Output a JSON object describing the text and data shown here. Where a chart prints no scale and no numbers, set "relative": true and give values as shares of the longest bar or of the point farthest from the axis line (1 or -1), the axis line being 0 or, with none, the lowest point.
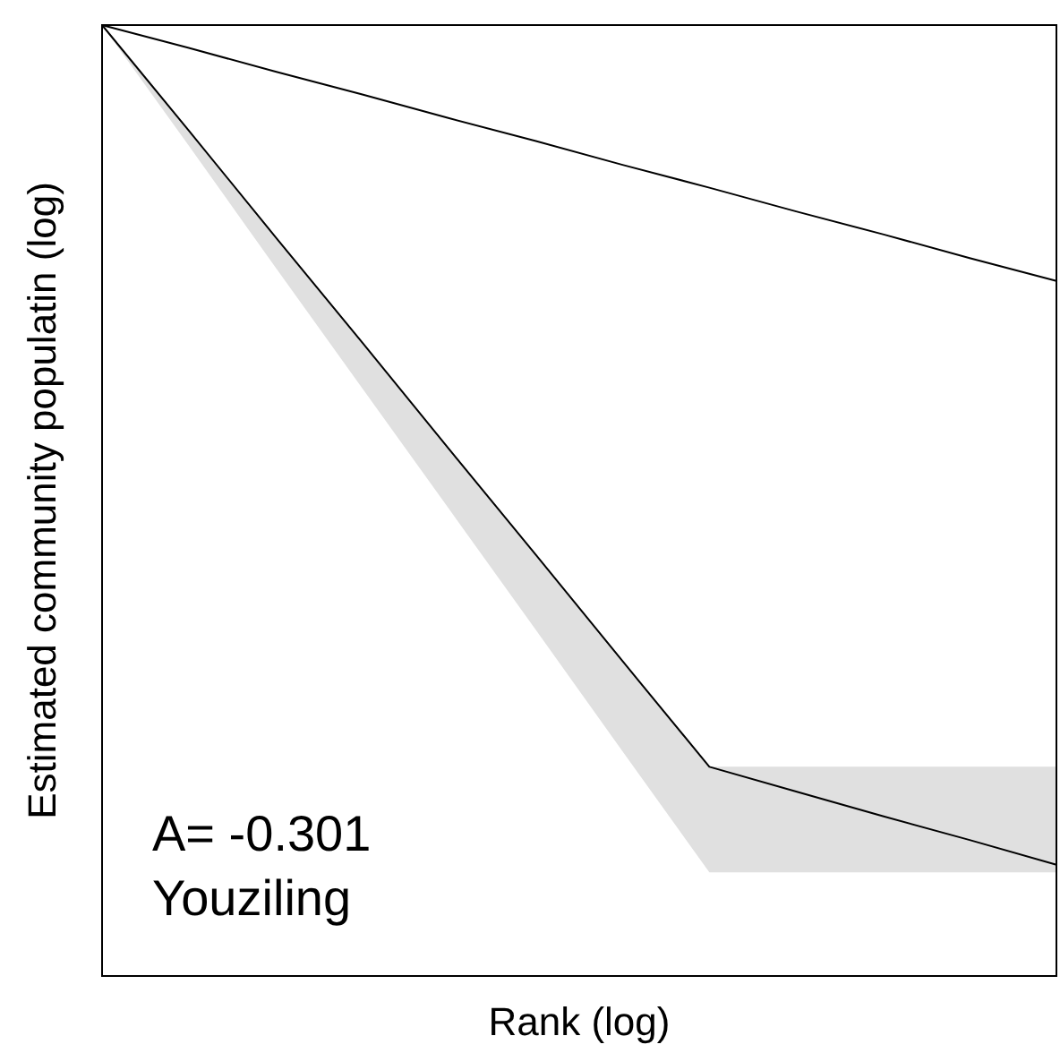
{
  "chart_data": {
    "type": "line",
    "xlabel": "Rank (log)",
    "ylabel": "Estimated community populatin (log)",
    "relative": true,
    "categories": [
      null,
      null,
      null,
      null,
      null,
      null,
      null,
      null,
      null,
      null,
      null,
      null
    ],
    "series": [
      {
        "color": "#000000",
        "values": [
          1,
          0.976,
          0.951,
          0.927,
          0.902,
          0.878,
          0.853,
          0.829,
          0.804,
          0.78,
          0.755,
          0.731
        ]
      },
      {
        "color": "#000000",
        "values": [
          1,
          0.889,
          0.777,
          0.666,
          0.554,
          0.443,
          0.331,
          0.22,
          0.194,
          0.168,
          0.143,
          0.117
        ],
        "lower": [
          1,
          0.873,
          0.745,
          0.618,
          0.491,
          0.364,
          0.236,
          0.109,
          0.109,
          0.109,
          0.109,
          0.109
        ],
        "upper": [
          1,
          0.889,
          0.777,
          0.666,
          0.554,
          0.443,
          0.331,
          0.22,
          0.22,
          0.22,
          0.22,
          0.22
        ]
      }
    ],
    "annotations": [
      "A= -0.301",
      "Youziling"
    ]
  }
}
